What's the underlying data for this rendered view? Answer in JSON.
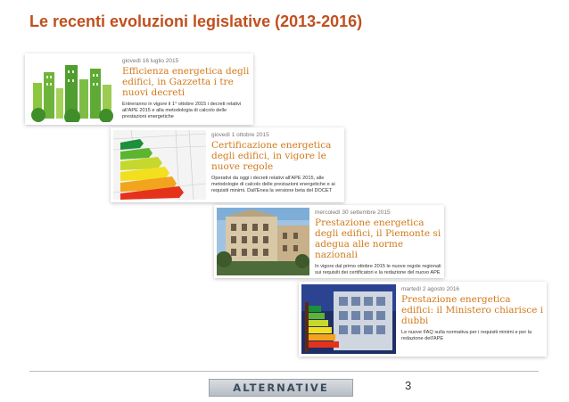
{
  "slide": {
    "title": "Le recenti evoluzioni legislative (2013-2016)",
    "page_number": "3"
  },
  "cards": [
    {
      "date": "giovedì 16 luglio 2015",
      "headline": "Efficienza energetica degli edifici, in Gazzetta i tre nuovi decreti",
      "summary": "Entreranno in vigore il 1° ottobre 2015 i decreti relativi all'APE 2015 e alla metodologia di calcolo delle prestazioni energetiche"
    },
    {
      "date": "giovedì 1 ottobre 2015",
      "headline": "Certificazione energetica degli edifici, in vigore le nuove regole",
      "summary": "Operativi da oggi i decreti relativi all'APE 2015, alle metodologie di calcolo delle prestazioni energetiche e ai requisiti minimi. Dall'Enea la versione beta del DOCET"
    },
    {
      "date": "mercoledì 30 settembre 2015",
      "headline": "Prestazione energetica degli edifici, il Piemonte si adegua alle norme nazionali",
      "summary": "In vigore dal primo ottobre 2015 le nuove regole regionali sui requisiti dei certificatori e la redazione del nuovo APE"
    },
    {
      "date": "martedì 2 agosto 2016",
      "headline": "Prestazione energetica edifici: il Ministero chiarisce i dubbi",
      "summary": "Le nuove FAQ sulla normativa per i requisiti minimi e per la redazione dell'APE"
    }
  ],
  "footer": {
    "logo_text": "ALTERNATIVE"
  }
}
